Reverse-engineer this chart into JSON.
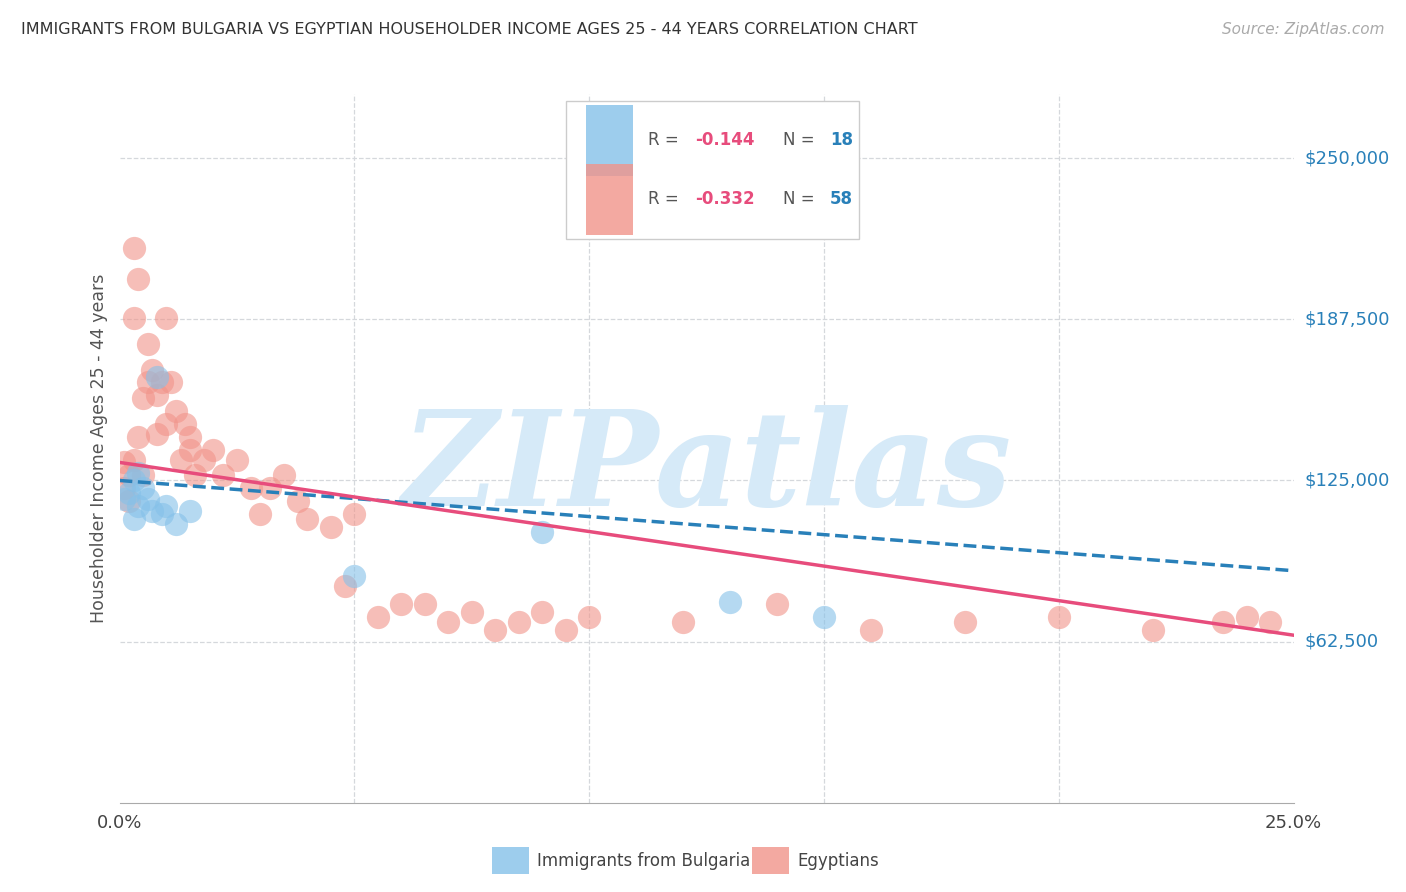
{
  "title": "IMMIGRANTS FROM BULGARIA VS EGYPTIAN HOUSEHOLDER INCOME AGES 25 - 44 YEARS CORRELATION CHART",
  "source": "Source: ZipAtlas.com",
  "ylabel": "Householder Income Ages 25 - 44 years",
  "xlim": [
    0.0,
    0.25
  ],
  "ylim": [
    0,
    275000
  ],
  "ytick_vals": [
    62500,
    125000,
    187500,
    250000
  ],
  "ytick_lbls": [
    "$62,500",
    "$125,000",
    "$187,500",
    "$250,000"
  ],
  "blue_color": "#85c1e9",
  "pink_color": "#f1948a",
  "blue_line_color": "#2980b9",
  "pink_line_color": "#e74c7c",
  "legend_R1": "-0.144",
  "legend_N1": "18",
  "legend_R2": "-0.332",
  "legend_N2": "58",
  "legend_bottom1": "Immigrants from Bulgaria",
  "legend_bottom2": "Egyptians",
  "watermark": "ZIPatlas",
  "watermark_color": "#d6eaf8",
  "grid_color": "#d5d8dc",
  "bulgaria_x": [
    0.001,
    0.002,
    0.003,
    0.003,
    0.004,
    0.004,
    0.005,
    0.006,
    0.007,
    0.008,
    0.009,
    0.01,
    0.012,
    0.015,
    0.05,
    0.09,
    0.13,
    0.15
  ],
  "bulgaria_y": [
    118000,
    120000,
    125000,
    110000,
    128000,
    115000,
    122000,
    118000,
    113000,
    165000,
    112000,
    115000,
    108000,
    113000,
    88000,
    105000,
    78000,
    72000
  ],
  "egypt_x": [
    0.001,
    0.001,
    0.002,
    0.002,
    0.003,
    0.003,
    0.003,
    0.004,
    0.004,
    0.005,
    0.005,
    0.006,
    0.006,
    0.007,
    0.008,
    0.008,
    0.009,
    0.01,
    0.01,
    0.011,
    0.012,
    0.013,
    0.014,
    0.015,
    0.015,
    0.016,
    0.018,
    0.02,
    0.022,
    0.025,
    0.028,
    0.03,
    0.032,
    0.035,
    0.038,
    0.04,
    0.045,
    0.048,
    0.05,
    0.055,
    0.06,
    0.065,
    0.07,
    0.075,
    0.08,
    0.085,
    0.09,
    0.095,
    0.1,
    0.12,
    0.14,
    0.16,
    0.18,
    0.2,
    0.22,
    0.235,
    0.24,
    0.245
  ],
  "egypt_y": [
    122000,
    132000,
    117000,
    127000,
    215000,
    188000,
    133000,
    203000,
    142000,
    157000,
    127000,
    163000,
    178000,
    168000,
    143000,
    158000,
    163000,
    188000,
    147000,
    163000,
    152000,
    133000,
    147000,
    137000,
    142000,
    127000,
    133000,
    137000,
    127000,
    133000,
    122000,
    112000,
    122000,
    127000,
    117000,
    110000,
    107000,
    84000,
    112000,
    72000,
    77000,
    77000,
    70000,
    74000,
    67000,
    70000,
    74000,
    67000,
    72000,
    70000,
    77000,
    67000,
    70000,
    72000,
    67000,
    70000,
    72000,
    70000
  ]
}
